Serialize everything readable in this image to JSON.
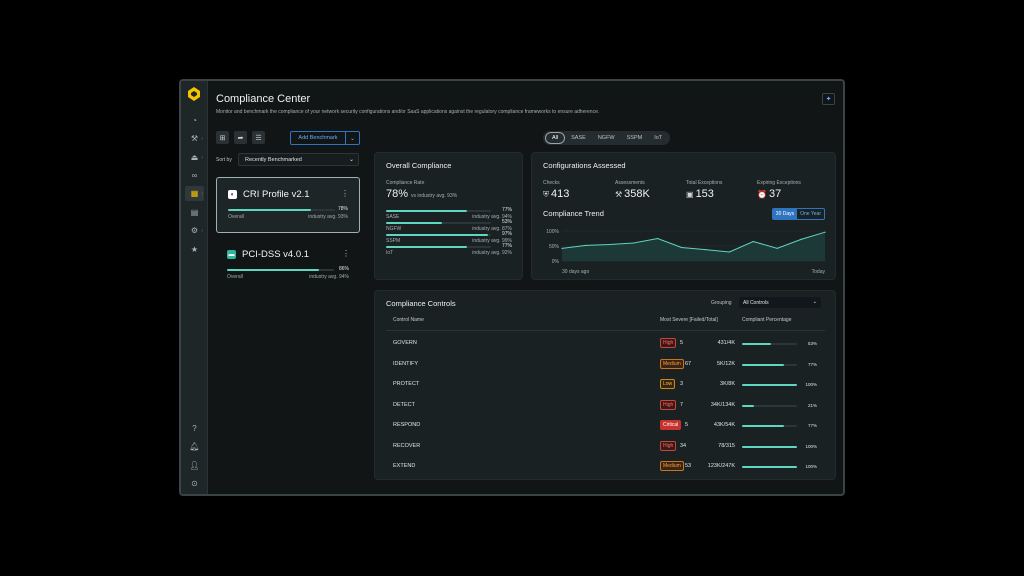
{
  "rail": {
    "icons": [
      "dashboard-icon",
      "wrench-icon",
      "stamp-icon",
      "binoculars-icon",
      "compliance-grid-icon",
      "report-icon",
      "settings-icon",
      "star-icon"
    ],
    "bottom_icons": [
      "help-icon",
      "bell-icon",
      "user-icon",
      "expand-icon"
    ],
    "help_glyph": "?"
  },
  "header": {
    "title": "Compliance Center",
    "subtitle": "Monitor and benchmark the compliance of your network security configurations and/or SaaS applications against the regulatory compliance frameworks to ensure adherence."
  },
  "toolbar": {
    "add_benchmark_label": "Add Benchmark",
    "filters": [
      "All",
      "SASE",
      "NGFW",
      "SSPM",
      "IoT"
    ],
    "selected_filter": "All"
  },
  "sort": {
    "label": "Sort by",
    "value": "Recently Benchmarked"
  },
  "profiles": [
    {
      "name": "CRI Profile v2.1",
      "overall_label": "Overall",
      "percent": "78%",
      "progress": 0.78,
      "industry": "industry avg. 93%",
      "selected": true,
      "icon_color": "#ffffff"
    },
    {
      "name": "PCI-DSS v4.0.1",
      "overall_label": "Overall",
      "percent": "86%",
      "progress": 0.86,
      "industry": "industry avg. 94%",
      "selected": false,
      "icon_color": "#2fb59b"
    }
  ],
  "overall": {
    "title": "Overall Compliance",
    "rate_label": "Compliance Rate",
    "rate_value": "78%",
    "rate_industry": "vs industry avg. 93%",
    "rows": [
      {
        "name": "SASE",
        "percent": "77%",
        "progress": 0.77,
        "industry": "industry avg. 94%"
      },
      {
        "name": "NGFW",
        "percent": "53%",
        "progress": 0.53,
        "industry": "industry avg. 87%"
      },
      {
        "name": "SSPM",
        "percent": "97%",
        "progress": 0.97,
        "industry": "industry avg. 99%"
      },
      {
        "name": "IoT",
        "percent": "77%",
        "progress": 0.77,
        "industry": "industry avg. 92%"
      }
    ]
  },
  "configs": {
    "title": "Configurations Assessed",
    "stats": [
      {
        "label": "Checks",
        "value": "413",
        "icon": "shield-icon"
      },
      {
        "label": "Assessments",
        "value": "358K",
        "icon": "gavel-icon"
      },
      {
        "label": "Total Exceptions",
        "value": "153",
        "icon": "briefcase-icon"
      },
      {
        "label": "Expiring Exceptions",
        "value": "37",
        "icon": "alarm-icon"
      }
    ],
    "trend_title": "Compliance Trend",
    "range_options": [
      "30 Days",
      "One Year"
    ],
    "range_selected": "30 Days",
    "x_start": "30 days ago",
    "x_end": "Today"
  },
  "chart_data": {
    "type": "area",
    "title": "Compliance Trend",
    "ylim": [
      0,
      100
    ],
    "ytick_labels": [
      "100%",
      "50%",
      "0%"
    ],
    "xtick_labels": [
      "30 days ago",
      "Today"
    ],
    "values": [
      42,
      52,
      55,
      60,
      75,
      45,
      38,
      30,
      65,
      42,
      72,
      96
    ]
  },
  "controls": {
    "title": "Compliance Controls",
    "grouping_label": "Grouping",
    "grouping_value": "All Controls",
    "headers": {
      "name": "Control Name",
      "severe": "Most Severe [Failed/Total]",
      "percent": "Compliant Percentage"
    },
    "rows": [
      {
        "name": "GOVERN",
        "severity": "High",
        "sev_class": "high",
        "count": "5",
        "fraction": "431/4K",
        "percent": "53%",
        "progress": 0.53
      },
      {
        "name": "IDENTIFY",
        "severity": "Medium",
        "sev_class": "medium",
        "count": "67",
        "fraction": "5K/12K",
        "percent": "77%",
        "progress": 0.77
      },
      {
        "name": "PROTECT",
        "severity": "Low",
        "sev_class": "low",
        "count": "3",
        "fraction": "3K/8K",
        "percent": "100%",
        "progress": 1.0
      },
      {
        "name": "DETECT",
        "severity": "High",
        "sev_class": "high",
        "count": "7",
        "fraction": "34K/134K",
        "percent": "21%",
        "progress": 0.21
      },
      {
        "name": "RESPOND",
        "severity": "Critical",
        "sev_class": "critical",
        "count": "5",
        "fraction": "43K/54K",
        "percent": "77%",
        "progress": 0.77
      },
      {
        "name": "RECOVER",
        "severity": "High",
        "sev_class": "high",
        "count": "34",
        "fraction": "78/315",
        "percent": "100%",
        "progress": 1.0
      },
      {
        "name": "EXTEND",
        "severity": "Medium",
        "sev_class": "medium",
        "count": "53",
        "fraction": "123K/247K",
        "percent": "100%",
        "progress": 1.0
      }
    ]
  },
  "colors": {
    "accent": "#5fd6c1",
    "brand": "#f5c400",
    "link": "#69aef8"
  }
}
